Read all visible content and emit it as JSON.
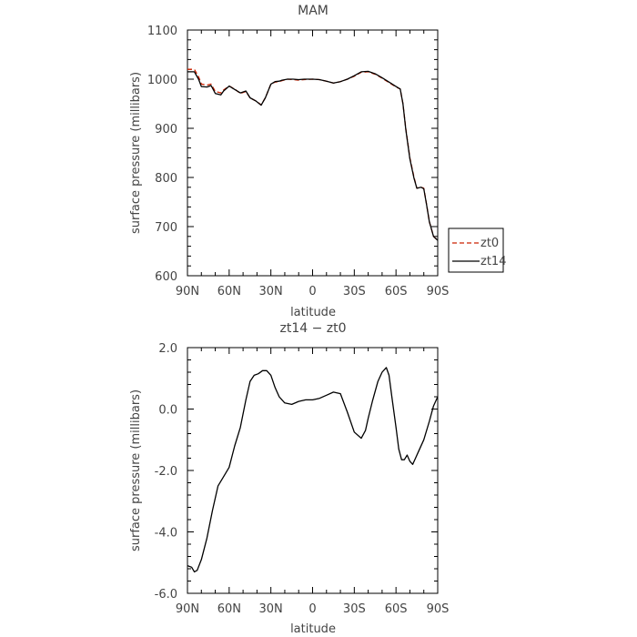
{
  "chart_data": [
    {
      "type": "line",
      "title": "MAM",
      "xlabel": "latitude",
      "ylabel": "surface pressure (millibars)",
      "x_tick_labels": [
        "90N",
        "60N",
        "30N",
        "0",
        "30S",
        "60S",
        "90S"
      ],
      "x_tick_values": [
        -90,
        -60,
        -30,
        0,
        30,
        60,
        90
      ],
      "y_tick_labels": [
        "600",
        "700",
        "800",
        "900",
        "1000",
        "1100"
      ],
      "y_tick_values": [
        600,
        700,
        800,
        900,
        1000,
        1100
      ],
      "xlim": [
        -90,
        90
      ],
      "ylim": [
        600,
        1100
      ],
      "x_note": "x values run north to south: -90 = 90N, 0 = equator, 90 = 90S",
      "grid": false,
      "legend_position": "outside-right-bottom",
      "series": [
        {
          "name": "zt0",
          "color": "#cc2200",
          "dash": "dashed",
          "x": [
            -90,
            -85,
            -82,
            -80,
            -76,
            -73,
            -70,
            -66,
            -64,
            -60,
            -56,
            -52,
            -48,
            -45,
            -41,
            -37,
            -34,
            -30,
            -27,
            -24,
            -22,
            -18,
            -14,
            -10,
            -6,
            0,
            5,
            10,
            15,
            20,
            25,
            30,
            35,
            40,
            45,
            50,
            55,
            60,
            63,
            65,
            67,
            70,
            73,
            75,
            78,
            80,
            82,
            84,
            87,
            90
          ],
          "y": [
            1020,
            1020,
            1005,
            990,
            988,
            990,
            975,
            972,
            978,
            986,
            980,
            971,
            975,
            962,
            956,
            948,
            962,
            990,
            994,
            995,
            997,
            1000,
            999,
            998,
            999,
            1000,
            999,
            996,
            992,
            995,
            1000,
            1006,
            1014,
            1015,
            1010,
            1002,
            993,
            984,
            980,
            950,
            900,
            840,
            800,
            778,
            780,
            778,
            745,
            710,
            680,
            672
          ]
        },
        {
          "name": "zt14",
          "color": "#000000",
          "dash": "solid",
          "x": [
            -90,
            -85,
            -82,
            -80,
            -76,
            -73,
            -70,
            -66,
            -64,
            -60,
            -56,
            -52,
            -48,
            -45,
            -41,
            -37,
            -34,
            -30,
            -27,
            -24,
            -22,
            -18,
            -14,
            -10,
            -6,
            0,
            5,
            10,
            15,
            20,
            25,
            30,
            35,
            40,
            45,
            50,
            55,
            60,
            63,
            65,
            67,
            70,
            73,
            75,
            78,
            80,
            82,
            84,
            87,
            90
          ],
          "y": [
            1015,
            1015,
            1000,
            985,
            984,
            987,
            971,
            968,
            976,
            986,
            979,
            972,
            976,
            962,
            956,
            947,
            962,
            990,
            995,
            996,
            998,
            1000,
            1000,
            999,
            1000,
            1000,
            999,
            996,
            992,
            995,
            1000,
            1007,
            1015,
            1016,
            1011,
            1003,
            994,
            985,
            980,
            950,
            898,
            838,
            798,
            778,
            780,
            777,
            744,
            710,
            680,
            672
          ]
        }
      ]
    },
    {
      "type": "line",
      "title": "zt14 − zt0",
      "xlabel": "latitude",
      "ylabel": "surface pressure (millibars)",
      "x_tick_labels": [
        "90N",
        "60N",
        "30N",
        "0",
        "30S",
        "60S",
        "90S"
      ],
      "x_tick_values": [
        -90,
        -60,
        -30,
        0,
        30,
        60,
        90
      ],
      "y_tick_labels": [
        "-6.0",
        "-4.0",
        "-2.0",
        "0.0",
        "2.0"
      ],
      "y_tick_values": [
        -6,
        -4,
        -2,
        0,
        2
      ],
      "xlim": [
        -90,
        90
      ],
      "ylim": [
        -6,
        2
      ],
      "x_note": "x values run north to south: -90 = 90N, 0 = equator, 90 = 90S",
      "grid": false,
      "series": [
        {
          "color": "#000000",
          "x": [
            -90,
            -87,
            -85,
            -83,
            -80,
            -76,
            -72,
            -68,
            -64,
            -60,
            -56,
            -52,
            -48,
            -45,
            -42,
            -39,
            -36,
            -33,
            -30,
            -27,
            -24,
            -20,
            -15,
            -10,
            -5,
            0,
            5,
            10,
            15,
            20,
            25,
            30,
            35,
            38,
            40,
            43,
            47,
            50,
            53,
            55,
            57,
            60,
            62,
            64,
            66,
            68,
            70,
            72,
            74,
            76,
            80,
            84,
            87,
            90
          ],
          "y": [
            -5.1,
            -5.15,
            -5.3,
            -5.25,
            -4.9,
            -4.2,
            -3.3,
            -2.5,
            -2.2,
            -1.9,
            -1.2,
            -0.6,
            0.3,
            0.9,
            1.1,
            1.15,
            1.25,
            1.25,
            1.1,
            0.7,
            0.4,
            0.2,
            0.15,
            0.25,
            0.3,
            0.3,
            0.35,
            0.45,
            0.55,
            0.5,
            -0.1,
            -0.75,
            -0.95,
            -0.7,
            -0.3,
            0.25,
            0.9,
            1.2,
            1.35,
            1.1,
            0.4,
            -0.6,
            -1.3,
            -1.65,
            -1.65,
            -1.5,
            -1.7,
            -1.8,
            -1.6,
            -1.4,
            -1.0,
            -0.4,
            0.1,
            0.4
          ]
        }
      ]
    }
  ]
}
